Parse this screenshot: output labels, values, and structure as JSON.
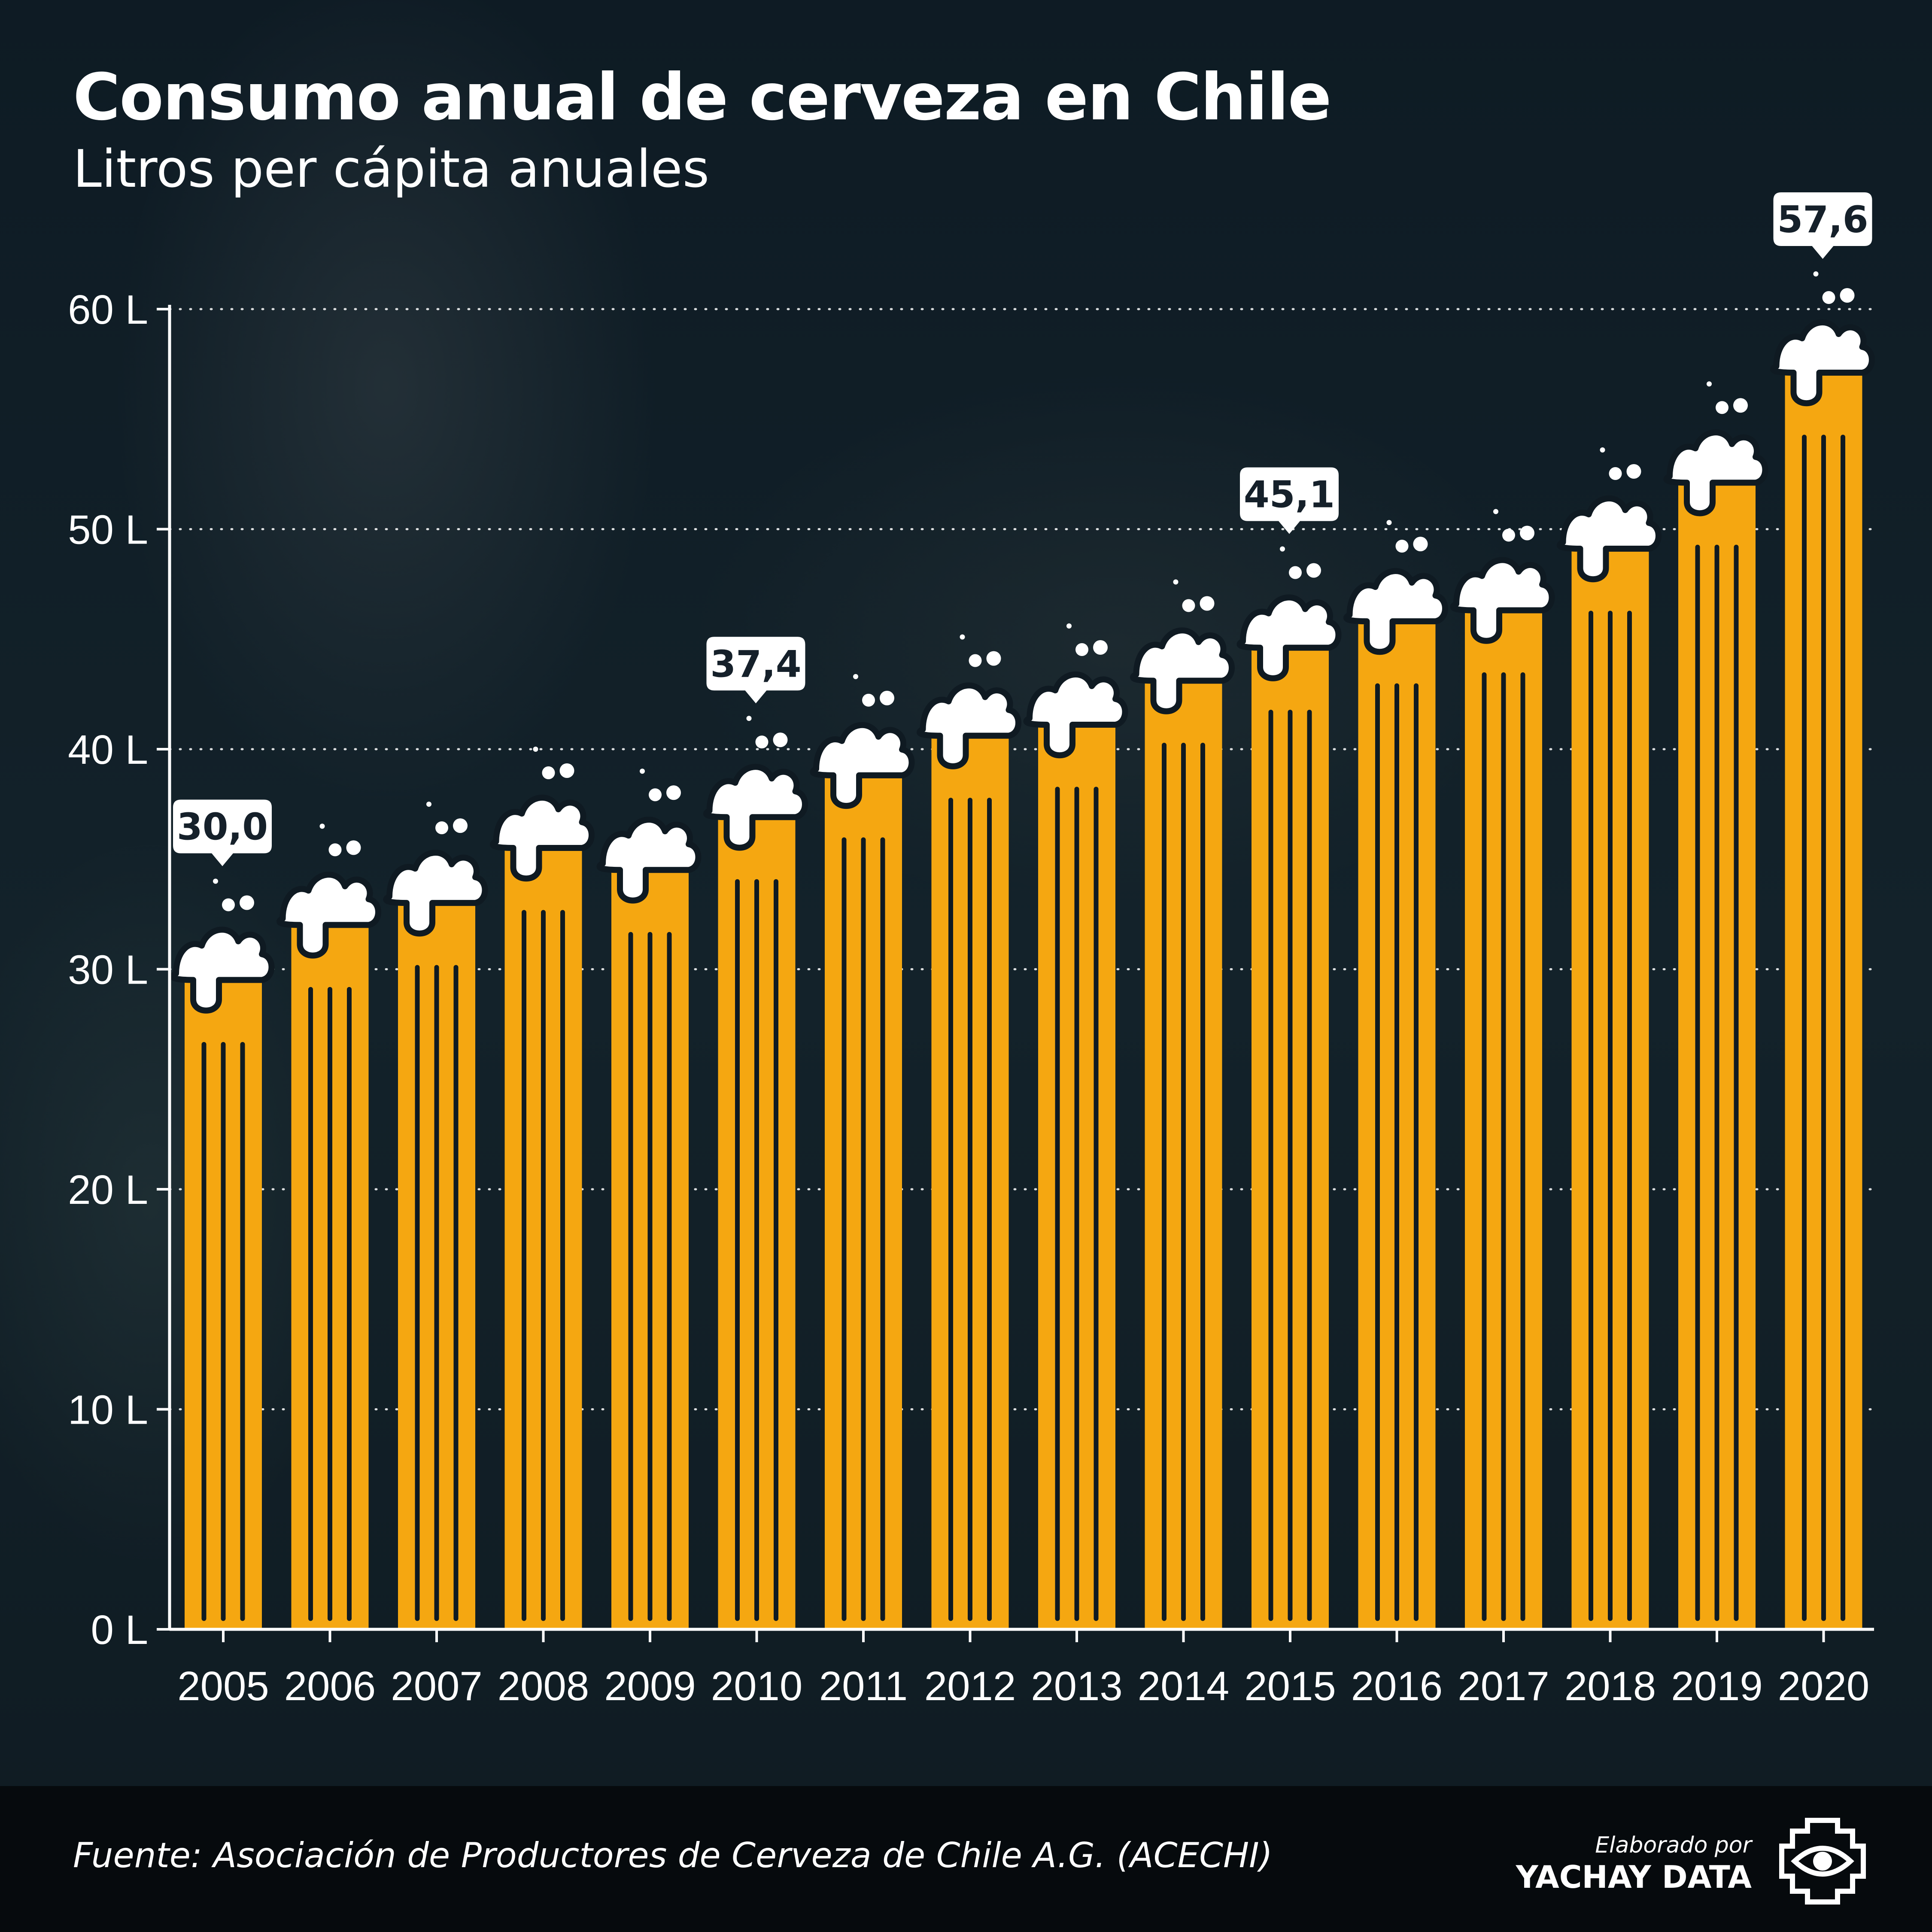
{
  "header": {
    "title": "Consumo anual de cerveza en Chile",
    "subtitle": "Litros per cápita anuales"
  },
  "footer": {
    "source": "Fuente: Asociación de Productores de Cerveza de Chile A.G. (ACECHI)",
    "credit_by": "Elaborado por",
    "credit_brand": "YACHAY DATA"
  },
  "colors": {
    "bar": "#f5a711",
    "foam": "#ffffff",
    "stripe": "#0f1a22",
    "background": "#0e1a22"
  },
  "chart_data": {
    "type": "bar",
    "title": "Consumo anual de cerveza en Chile",
    "subtitle": "Litros per cápita anuales",
    "xlabel": "",
    "ylabel": "",
    "categories": [
      "2005",
      "2006",
      "2007",
      "2008",
      "2009",
      "2010",
      "2011",
      "2012",
      "2013",
      "2014",
      "2015",
      "2016",
      "2017",
      "2018",
      "2019",
      "2020"
    ],
    "values": [
      30.0,
      32.5,
      33.5,
      36.0,
      35.0,
      37.4,
      39.3,
      41.1,
      41.6,
      43.6,
      45.1,
      46.3,
      46.8,
      49.6,
      52.6,
      57.6
    ],
    "ylim": [
      0,
      60
    ],
    "yticks": [
      0,
      10,
      20,
      30,
      40,
      50,
      60
    ],
    "ytick_labels": [
      "0 L",
      "10 L",
      "20 L",
      "30 L",
      "40 L",
      "50 L",
      "60 L"
    ],
    "data_labels": [
      {
        "category": "2005",
        "text": "30,0"
      },
      {
        "category": "2010",
        "text": "37,4"
      },
      {
        "category": "2015",
        "text": "45,1"
      },
      {
        "category": "2020",
        "text": "57,6"
      }
    ],
    "grid": "horizontal-dotted"
  }
}
